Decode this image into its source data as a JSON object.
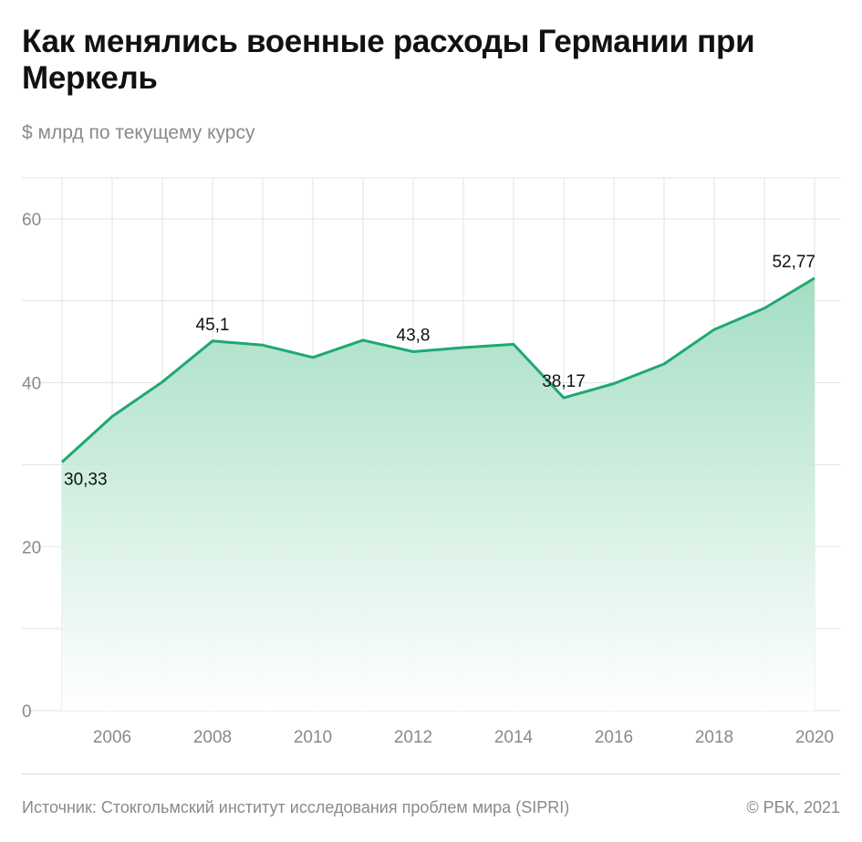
{
  "header": {
    "title": "Как менялись военные расходы Германии при Меркель",
    "subtitle": "$ млрд по текущему курсу"
  },
  "footer": {
    "source": "Источник: Стокгольмский институт исследования проблем мира (SIPRI)",
    "copyright": "© РБК, 2021"
  },
  "colors": {
    "line": "#1fa874",
    "area_top": "#9fdcc0",
    "grid": "#e3e3e3"
  },
  "chart_data": {
    "type": "area",
    "x": [
      2005,
      2006,
      2007,
      2008,
      2009,
      2010,
      2011,
      2012,
      2013,
      2014,
      2015,
      2016,
      2017,
      2018,
      2019,
      2020
    ],
    "values": [
      30.33,
      35.9,
      40.1,
      45.1,
      44.6,
      43.1,
      45.2,
      43.8,
      44.3,
      44.7,
      38.17,
      39.9,
      42.3,
      46.5,
      49.1,
      52.77
    ],
    "data_labels": [
      {
        "x": 2005,
        "text": "30,33",
        "position": "below"
      },
      {
        "x": 2008,
        "text": "45,1",
        "position": "above"
      },
      {
        "x": 2012,
        "text": "43,8",
        "position": "above"
      },
      {
        "x": 2015,
        "text": "38,17",
        "position": "above"
      },
      {
        "x": 2020,
        "text": "52,77",
        "position": "above"
      }
    ],
    "x_ticks": [
      2006,
      2008,
      2010,
      2012,
      2014,
      2016,
      2018,
      2020
    ],
    "x_tick_labels": [
      "2006",
      "2008",
      "2010",
      "2012",
      "2014",
      "2016",
      "2018",
      "2020"
    ],
    "y_ticks": [
      0,
      20,
      40,
      60
    ],
    "y_tick_labels": [
      "0",
      "20",
      "40",
      "60"
    ],
    "xlim": [
      2005,
      2020
    ],
    "ylim": [
      0,
      65
    ],
    "grid": true,
    "legend": false
  }
}
